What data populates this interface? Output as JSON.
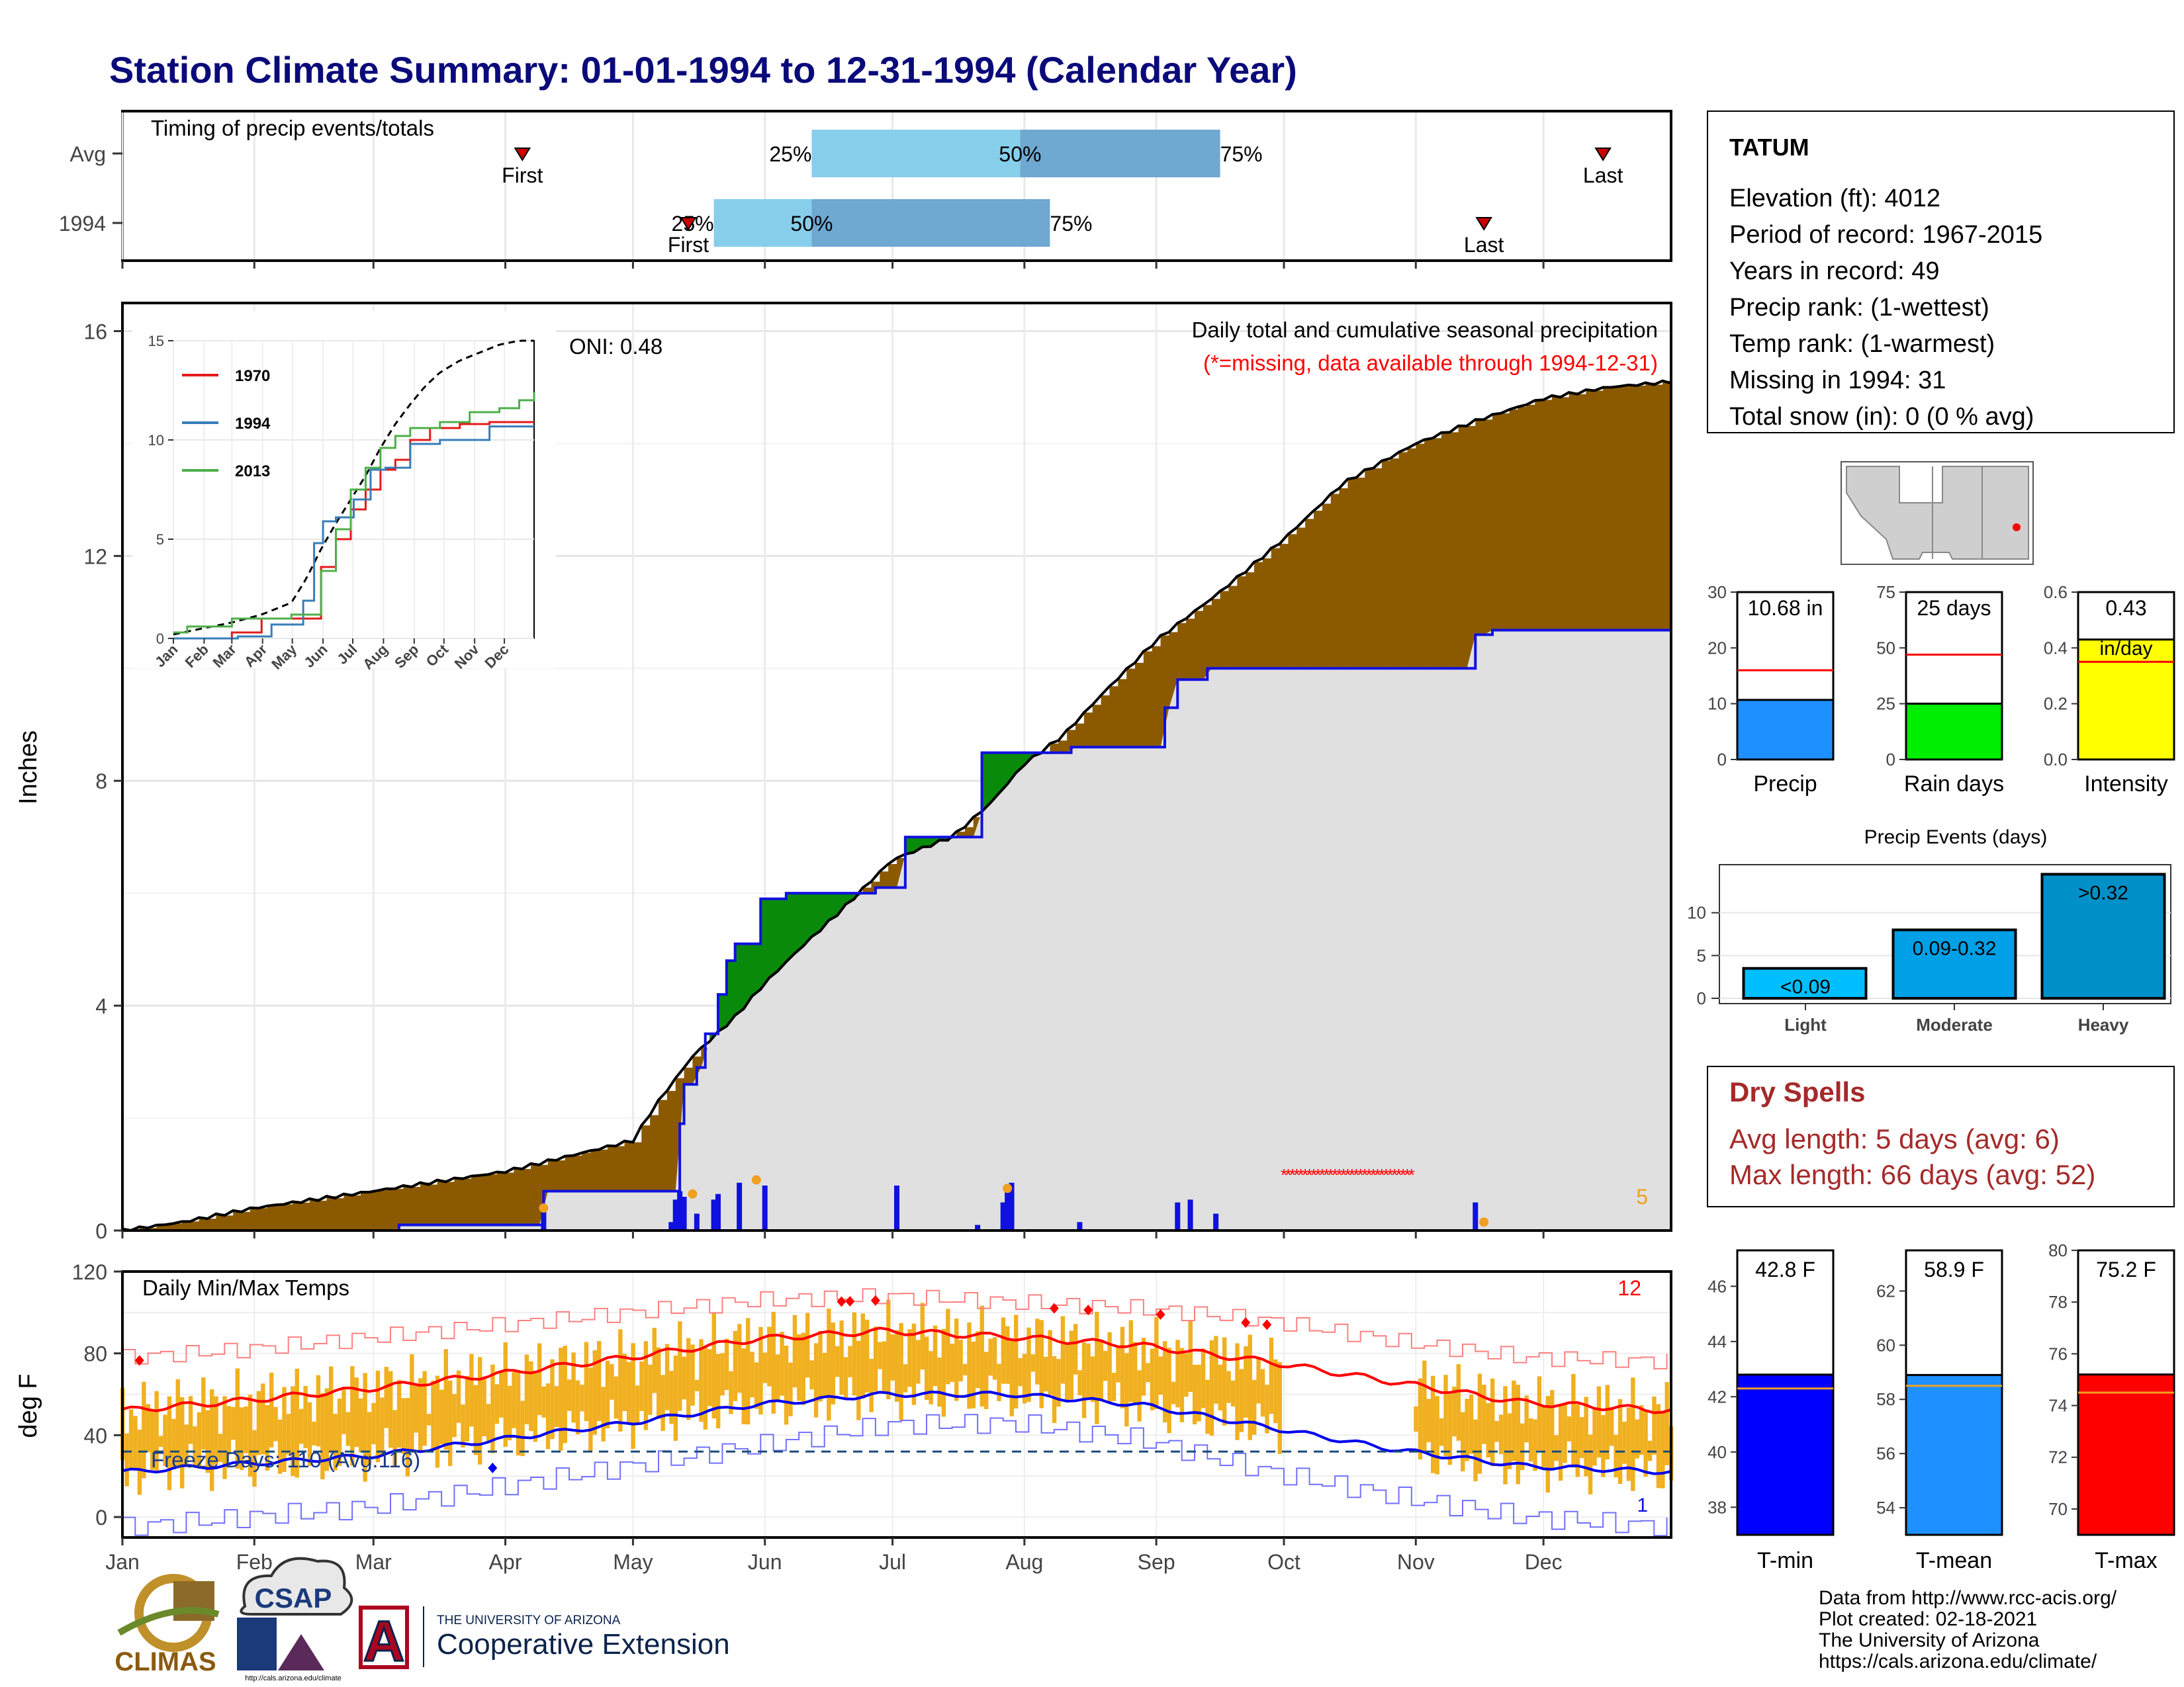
{
  "page": {
    "title": "Station Climate Summary: 01-01-1994 to 12-31-1994 (Calendar Year)"
  },
  "colors": {
    "title": "#0a0a7a",
    "brown": "#8b5a00",
    "green": "#0a8a0a",
    "gray_fill": "#e0e0e0",
    "blue_line": "#1010e0",
    "light_blue": "#87ceeb",
    "mid_blue": "#6fa8d0",
    "orange": "#f0a020",
    "gold_bar": "#f0b020",
    "red": "#ff0000",
    "dry_spell_red": "#a52a2a"
  },
  "timing": {
    "title": "Timing of precip events/totals",
    "rows": [
      {
        "label": "Avg",
        "first_label": "First",
        "last_label": "Last",
        "first_doy": 95,
        "last_doy": 349,
        "p25_doy": 163,
        "p50_doy": 212,
        "p75_doy": 259,
        "p25_label": "25%",
        "p50_label": "50%",
        "p75_label": "75%"
      },
      {
        "label": "1994",
        "first_label": "First",
        "last_label": "Last",
        "first_doy": 134,
        "last_doy": 321,
        "p25_doy": 140,
        "p50_doy": 163,
        "p75_doy": 219,
        "p25_label": "25%",
        "p50_label": "50%",
        "p75_label": "75%"
      }
    ]
  },
  "main": {
    "ylabel": "Inches",
    "header_line1": "Daily total and cumulative seasonal precipitation",
    "header_line2": "(*=missing, data available through 1994-12-31)",
    "oni": "ONI: 0.48",
    "missing_count": "5",
    "y_ticks": [
      "0",
      "4",
      "8",
      "12",
      "16"
    ]
  },
  "temps": {
    "title": "Daily Min/Max Temps",
    "ylabel": "deg F",
    "count_label": "12",
    "freeze_label": "Freeze Days: 110 (Avg:116)",
    "freeze_count_small": "1",
    "y_ticks": [
      "0",
      "40",
      "80",
      "120"
    ]
  },
  "months": [
    "Jan",
    "Feb",
    "Mar",
    "Apr",
    "May",
    "Jun",
    "Jul",
    "Aug",
    "Sep",
    "Oct",
    "Nov",
    "Dec"
  ],
  "inset": {
    "y_ticks": [
      "0",
      "5",
      "10",
      "15"
    ],
    "months": [
      "Jan",
      "Feb",
      "Mar",
      "Apr",
      "May",
      "Jun",
      "Jul",
      "Aug",
      "Sep",
      "Oct",
      "Nov",
      "Dec"
    ],
    "legend": [
      {
        "name": "1970",
        "color": "#e41a1c"
      },
      {
        "name": "1994",
        "color": "#377eb8"
      },
      {
        "name": "2013",
        "color": "#4daf4a"
      }
    ]
  },
  "station": {
    "name": "TATUM",
    "elevation": "Elevation (ft): 4012",
    "period": "Period of record: 1967-2015",
    "years": "Years in record: 49",
    "precip_rank": "Precip rank:  (1-wettest)",
    "temp_rank": "Temp rank:  (1-warmest)",
    "missing": "Missing in 1994: 31",
    "snow": "Total snow (in): 0 (0 % avg)"
  },
  "mini_bars": [
    {
      "label": "Precip",
      "value_label": "10.68 in",
      "ticks": [
        "0",
        "10",
        "20",
        "30"
      ]
    },
    {
      "label": "Rain days",
      "value_label": "25 days",
      "ticks": [
        "0",
        "25",
        "50",
        "75"
      ]
    },
    {
      "label": "Intensity",
      "value_label": "0.43",
      "value_label2": "in/day",
      "ticks": [
        "0.0",
        "0.2",
        "0.4",
        "0.6"
      ]
    }
  ],
  "events": {
    "title": "Precip Events (days)",
    "ticks": [
      "0",
      "5",
      "10"
    ],
    "bars": [
      {
        "category": "Light",
        "label": "<0.09"
      },
      {
        "category": "Moderate",
        "label": "0.09-0.32"
      },
      {
        "category": "Heavy",
        "label": ">0.32"
      }
    ]
  },
  "dry_spells": {
    "title": "Dry Spells",
    "avg": "Avg length: 5 days (avg: 6)",
    "max": "Max length: 66 days (avg: 52)"
  },
  "temp_bars": [
    {
      "label": "T-min",
      "value_label": "42.8 F",
      "ticks": [
        "38",
        "40",
        "42",
        "44",
        "46"
      ]
    },
    {
      "label": "T-mean",
      "value_label": "58.9 F",
      "ticks": [
        "54",
        "56",
        "58",
        "60",
        "62"
      ]
    },
    {
      "label": "T-max",
      "value_label": "75.2 F",
      "ticks": [
        "70",
        "72",
        "74",
        "76",
        "78",
        "80"
      ]
    }
  ],
  "footer": {
    "line1": "Data from http://www.rcc-acis.org/",
    "line2": "Plot created: 02-18-2021",
    "line3": "The University of Arizona",
    "line4": "https://cals.arizona.edu/climate/"
  },
  "logos": {
    "climas": "CLIMAS",
    "csap": "CSAP",
    "csap_url": "http://cals.arizona.edu/climate",
    "ua_small": "THE UNIVERSITY OF ARIZONA",
    "ua_big": "Cooperative Extension",
    "ua_letter": "A"
  },
  "chart_data": [
    {
      "type": "area",
      "title": "Daily total and cumulative seasonal precipitation",
      "ylabel": "Inches",
      "ylim": [
        0,
        16.5
      ],
      "x_unit": "day of year",
      "series": [
        {
          "name": "average cumulative",
          "x": [
            1,
            15,
            32,
            60,
            91,
            121,
            126,
            135,
            145,
            152,
            160,
            170,
            182,
            196,
            205,
            213,
            222,
            232,
            244,
            258,
            274,
            288,
            305,
            319,
            335,
            350,
            365
          ],
          "values": [
            0,
            0.15,
            0.4,
            0.7,
            1.05,
            1.6,
            2.2,
            3.1,
            3.8,
            4.4,
            5.0,
            5.7,
            6.6,
            7.0,
            7.6,
            8.3,
            8.8,
            9.6,
            10.5,
            11.3,
            12.3,
            13.3,
            14.0,
            14.4,
            14.8,
            15.0,
            15.1
          ]
        },
        {
          "name": "1994 cumulative",
          "x": [
            1,
            66,
            100,
            132,
            133,
            136,
            138,
            141,
            143,
            145,
            151,
            157,
            178,
            185,
            203,
            214,
            224,
            246,
            249,
            256,
            268,
            319,
            323,
            365
          ],
          "values": [
            0,
            0.1,
            0.7,
            1.9,
            2.6,
            2.9,
            3.5,
            4.2,
            4.8,
            5.1,
            5.9,
            6.0,
            6.1,
            7.0,
            8.5,
            8.5,
            8.6,
            9.3,
            9.8,
            10.0,
            10.0,
            10.6,
            10.68,
            10.68
          ]
        },
        {
          "name": "1994 daily",
          "x": [
            100,
            130,
            131,
            132,
            133,
            136,
            140,
            141,
            146,
            152,
            183,
            202,
            208,
            209,
            210,
            226,
            249,
            252,
            258,
            319
          ],
          "values": [
            0.35,
            0.15,
            0.55,
            0.7,
            0.6,
            0.3,
            0.55,
            0.65,
            0.85,
            0.8,
            0.8,
            0.1,
            0.5,
            0.7,
            0.85,
            0.15,
            0.5,
            0.55,
            0.3,
            0.5
          ]
        }
      ],
      "missing_days": [
        274,
        275,
        276,
        277,
        278,
        279,
        280,
        281,
        282,
        283,
        284,
        285,
        286,
        287,
        288,
        289,
        290,
        291,
        292,
        293,
        294,
        295,
        296,
        297,
        298,
        299,
        300,
        301,
        302,
        303,
        304
      ]
    },
    {
      "type": "line",
      "title": "",
      "ylim": [
        0,
        15
      ],
      "x_unit": "day of year",
      "series": [
        {
          "name": "average",
          "x": [
            1,
            30,
            60,
            90,
            120,
            135,
            150,
            165,
            180,
            195,
            210,
            225,
            240,
            255,
            270,
            290,
            310,
            330,
            350,
            365
          ],
          "values": [
            0.2,
            0.5,
            0.8,
            1.2,
            1.8,
            3.0,
            4.5,
            5.8,
            7.0,
            8.2,
            9.6,
            10.8,
            11.8,
            12.7,
            13.4,
            14.0,
            14.4,
            14.8,
            15.0,
            15.0
          ]
        },
        {
          "name": "1970",
          "x": [
            1,
            60,
            90,
            120,
            150,
            165,
            180,
            195,
            210,
            225,
            240,
            260,
            290,
            320,
            365
          ],
          "values": [
            0,
            0.3,
            1.0,
            1.0,
            3.6,
            5.0,
            6.5,
            7.5,
            8.5,
            9.0,
            10.0,
            10.6,
            10.8,
            10.9,
            10.9
          ]
        },
        {
          "name": "1994",
          "x": [
            1,
            66,
            100,
            132,
            143,
            152,
            165,
            183,
            200,
            215,
            240,
            270,
            320,
            365
          ],
          "values": [
            0,
            0.1,
            0.7,
            1.9,
            4.8,
            5.9,
            6.1,
            7.0,
            8.5,
            8.6,
            9.8,
            10.0,
            10.68,
            10.68
          ]
        },
        {
          "name": "2013",
          "x": [
            1,
            15,
            60,
            120,
            150,
            165,
            180,
            195,
            210,
            225,
            240,
            270,
            300,
            330,
            350,
            365
          ],
          "values": [
            0.3,
            0.6,
            1.0,
            1.2,
            3.4,
            5.5,
            7.5,
            8.6,
            9.6,
            10.2,
            10.6,
            10.9,
            11.4,
            11.6,
            12.0,
            12.4
          ]
        }
      ]
    },
    {
      "type": "line",
      "title": "Daily Min/Max Temps",
      "ylabel": "deg F",
      "ylim": [
        -10,
        120
      ],
      "x_unit": "day of year",
      "series": [
        {
          "name": "normal max",
          "x": [
            1,
            30,
            60,
            90,
            120,
            150,
            180,
            210,
            240,
            270,
            300,
            330,
            365
          ],
          "values": [
            52,
            57,
            63,
            70,
            78,
            87,
            91,
            88,
            84,
            76,
            66,
            56,
            52
          ]
        },
        {
          "name": "normal min",
          "x": [
            1,
            30,
            60,
            90,
            120,
            150,
            180,
            210,
            240,
            270,
            300,
            330,
            365
          ],
          "values": [
            22,
            26,
            30,
            38,
            46,
            55,
            60,
            60,
            55,
            44,
            33,
            25,
            22
          ]
        },
        {
          "name": "record max",
          "x": [
            1,
            30,
            60,
            90,
            120,
            150,
            180,
            210,
            240,
            270,
            300,
            330,
            365
          ],
          "values": [
            78,
            82,
            88,
            94,
            100,
            106,
            108,
            105,
            102,
            96,
            86,
            78,
            76
          ]
        },
        {
          "name": "record min",
          "x": [
            1,
            30,
            60,
            90,
            120,
            150,
            180,
            210,
            240,
            270,
            300,
            330,
            365
          ],
          "values": [
            -5,
            0,
            5,
            15,
            25,
            35,
            45,
            46,
            38,
            22,
            10,
            0,
            -5
          ]
        }
      ],
      "freeze_line": 32
    },
    {
      "type": "bar",
      "categories": [
        "Precip",
        "Rain days",
        "Intensity"
      ],
      "values": [
        10.68,
        25,
        0.43
      ],
      "averages": [
        16,
        47,
        0.35
      ],
      "ylims": [
        [
          0,
          30
        ],
        [
          0,
          75
        ],
        [
          0,
          0.6
        ]
      ]
    },
    {
      "type": "bar",
      "title": "Precip Events (days)",
      "categories": [
        "Light",
        "Moderate",
        "Heavy"
      ],
      "values": [
        3.5,
        8,
        14.5
      ],
      "ylim": [
        0,
        15
      ]
    },
    {
      "type": "bar",
      "categories": [
        "T-min",
        "T-mean",
        "T-max"
      ],
      "values": [
        42.8,
        58.9,
        75.2
      ],
      "averages": [
        42.3,
        58.5,
        74.5
      ],
      "ylims": [
        [
          37,
          47.3
        ],
        [
          53,
          63.5
        ],
        [
          69,
          80
        ]
      ]
    }
  ]
}
